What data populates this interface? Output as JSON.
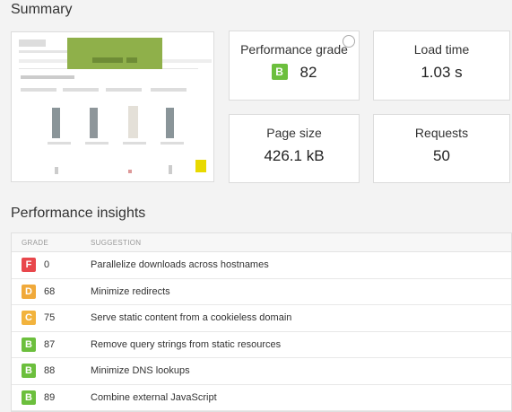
{
  "summary": {
    "title": "Summary",
    "cards": [
      {
        "label": "Performance grade",
        "grade": "B",
        "value": "82"
      },
      {
        "label": "Load time",
        "value": "1.03 s"
      },
      {
        "label": "Page size",
        "value": "426.1 kB"
      },
      {
        "label": "Requests",
        "value": "50"
      }
    ]
  },
  "insights": {
    "title": "Performance insights",
    "columns": [
      "GRADE",
      "SUGGESTION"
    ],
    "rows": [
      {
        "grade": "F",
        "score": "0",
        "suggestion": "Parallelize downloads across hostnames"
      },
      {
        "grade": "D",
        "score": "68",
        "suggestion": "Minimize redirects"
      },
      {
        "grade": "C",
        "score": "75",
        "suggestion": "Serve static content from a cookieless domain"
      },
      {
        "grade": "B",
        "score": "87",
        "suggestion": "Remove query strings from static resources"
      },
      {
        "grade": "B",
        "score": "88",
        "suggestion": "Minimize DNS lookups"
      },
      {
        "grade": "B",
        "score": "89",
        "suggestion": "Combine external JavaScript"
      }
    ]
  }
}
